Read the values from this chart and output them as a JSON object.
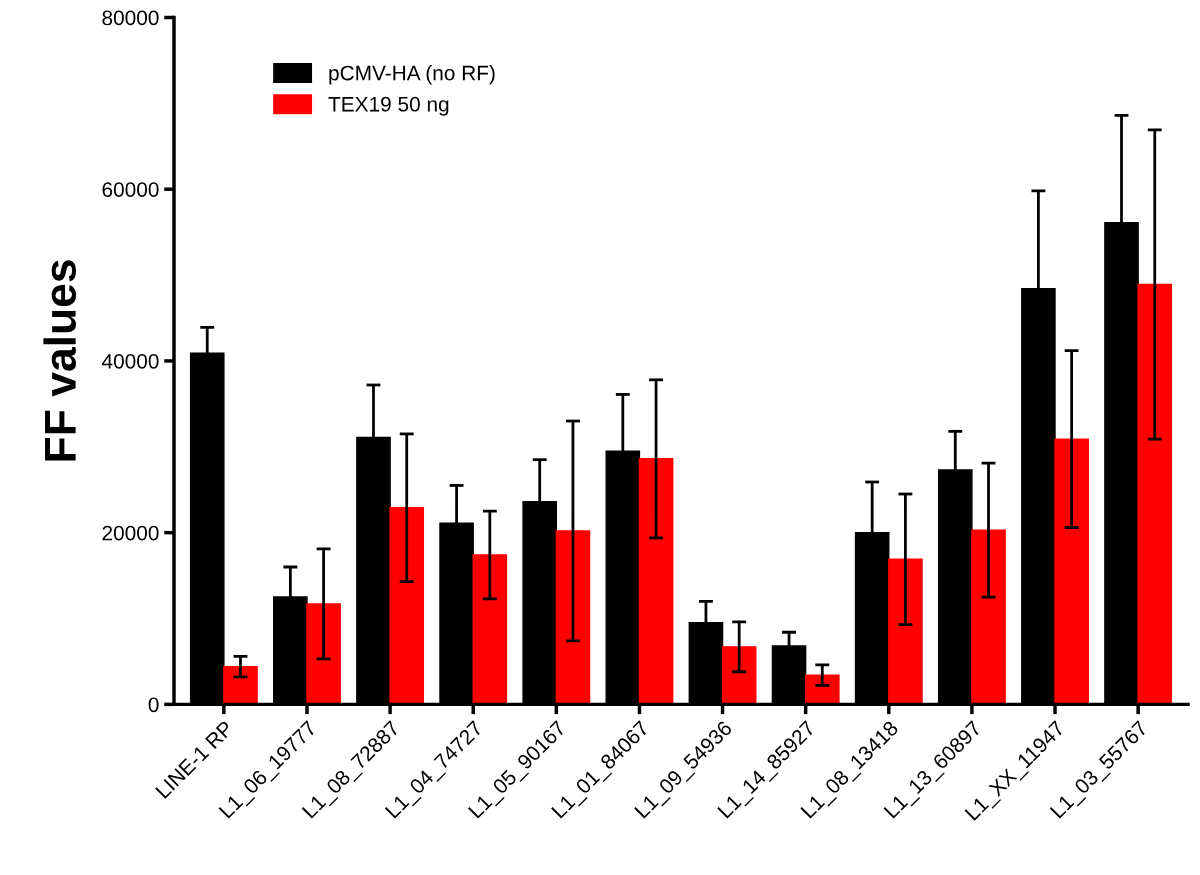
{
  "chart_data": {
    "type": "bar",
    "ylabel": "FF values",
    "categories": [
      "LINE-1 RP",
      "L1_06_19777",
      "L1_08_72887",
      "L1_04_74727",
      "L1_05_90167",
      "L1_01_84067",
      "L1_09_54936",
      "L1_14_85927",
      "L1_08_13418",
      "L1_13_60897",
      "L1_XX_11947",
      "L1_03_55767"
    ],
    "series": [
      {
        "name": "pCMV-HA (no RF)",
        "color": "#000000",
        "values": [
          40900,
          12500,
          31100,
          21100,
          23600,
          29500,
          9500,
          6800,
          20000,
          27300,
          48400,
          56100
        ],
        "errors": [
          3000,
          3500,
          6100,
          4400,
          4900,
          6600,
          2500,
          1600,
          5900,
          4500,
          11400,
          12500
        ]
      },
      {
        "name": "TEX19 50 ng",
        "color": "#ff0000",
        "values": [
          4400,
          11700,
          22900,
          17400,
          20200,
          28600,
          6700,
          3400,
          16900,
          20300,
          30900,
          48900
        ],
        "errors": [
          1200,
          6400,
          8600,
          5100,
          12800,
          9200,
          2900,
          1200,
          7600,
          7800,
          10300,
          18000
        ]
      }
    ],
    "ylim": [
      0,
      80000
    ],
    "yticks": [
      0,
      20000,
      40000,
      60000,
      80000
    ],
    "grid": false,
    "legend": "top left"
  }
}
